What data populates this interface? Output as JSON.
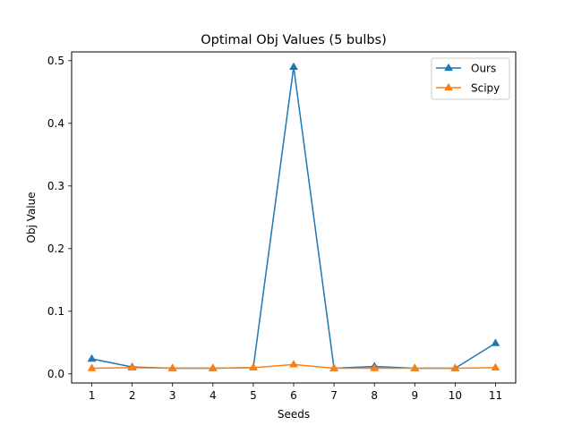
{
  "chart_data": {
    "type": "line",
    "title": "Optimal Obj Values (5 bulbs)",
    "xlabel": "Seeds",
    "ylabel": "Obj Value",
    "x": [
      1,
      2,
      3,
      4,
      5,
      6,
      7,
      8,
      9,
      10,
      11
    ],
    "x_ticks": [
      "1",
      "2",
      "3",
      "4",
      "5",
      "6",
      "7",
      "8",
      "9",
      "10",
      "11"
    ],
    "y_ticks": [
      "0.0",
      "0.1",
      "0.2",
      "0.3",
      "0.4",
      "0.5"
    ],
    "xlim": [
      0.5,
      11.5
    ],
    "ylim": [
      -0.0145,
      0.514
    ],
    "grid": false,
    "legend_position": "top-right",
    "series": [
      {
        "name": "Ours",
        "color": "#1f77b4",
        "marker": "triangle",
        "values": [
          0.024,
          0.011,
          0.009,
          0.009,
          0.01,
          0.49,
          0.009,
          0.012,
          0.009,
          0.009,
          0.049
        ]
      },
      {
        "name": "Scipy",
        "color": "#ff7f0e",
        "marker": "triangle",
        "values": [
          0.009,
          0.01,
          0.009,
          0.009,
          0.01,
          0.015,
          0.009,
          0.009,
          0.009,
          0.009,
          0.01
        ]
      }
    ]
  }
}
